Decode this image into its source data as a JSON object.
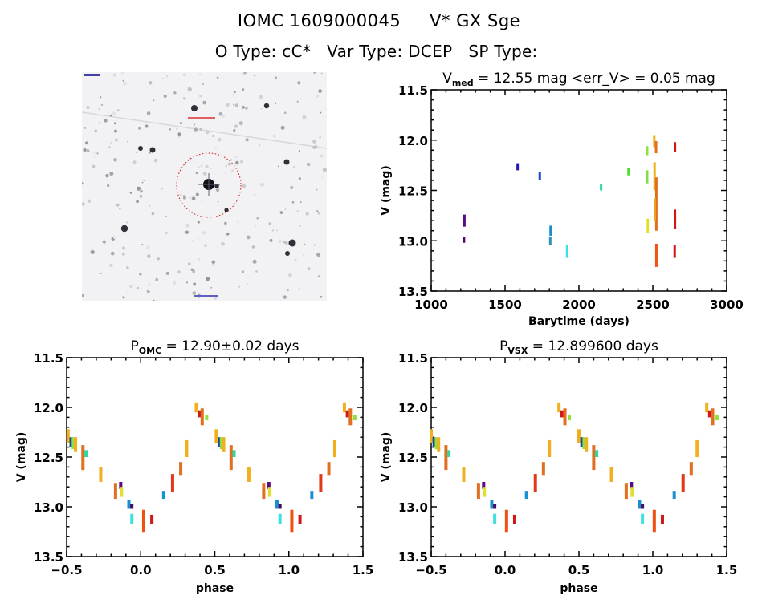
{
  "header": {
    "object_id": "IOMC 1609000045",
    "object_name": "V* GX Sge",
    "o_type_label": "O Type:",
    "o_type": "cC*",
    "var_type_label": "Var Type:",
    "var_type": "DCEP",
    "sp_type_label": "SP Type:",
    "sp_type": ""
  },
  "thumbnail": {
    "description": "Grayscale finding chart with red dashed circle around target star",
    "marker_color": "#d01010"
  },
  "chart_data": [
    {
      "id": "lightcurve",
      "type": "scatter",
      "title_prefix": "V",
      "title_sub": "med",
      "title_suffix": " = 12.55 mag <err_V> = 0.05 mag",
      "xlabel": "Barytime (days)",
      "ylabel": "V (mag)",
      "xlim": [
        1000,
        3000
      ],
      "ylim": [
        13.5,
        11.5
      ],
      "y_inverted": true,
      "xticks": [
        1000,
        1500,
        2000,
        2500,
        3000
      ],
      "xtick_labels": [
        "1000",
        "1500",
        "2000",
        "2500",
        "3000"
      ],
      "yticks": [
        11.5,
        12.0,
        12.5,
        13.0,
        13.5
      ],
      "ytick_labels": [
        "11.5",
        "12.0",
        "12.5",
        "13.0",
        "13.5"
      ],
      "grid": false,
      "series": [
        {
          "name": "epoch-1",
          "color": "#5a0a80",
          "x": 1225,
          "y_range": [
            12.74,
            12.86
          ]
        },
        {
          "name": "epoch-2",
          "color": "#4a0a60",
          "x": 1222,
          "y_range": [
            12.96,
            13.02
          ]
        },
        {
          "name": "epoch-3",
          "color": "#2018b8",
          "x": 1585,
          "y_range": [
            12.23,
            12.3
          ]
        },
        {
          "name": "epoch-4",
          "color": "#1848c8",
          "x": 1735,
          "y_range": [
            12.32,
            12.4
          ]
        },
        {
          "name": "epoch-5",
          "color": "#1890d0",
          "x": 1808,
          "y_range": [
            12.85,
            12.95
          ]
        },
        {
          "name": "epoch-6",
          "color": "#3090b8",
          "x": 1806,
          "y_range": [
            12.96,
            13.04
          ]
        },
        {
          "name": "epoch-7",
          "color": "#40e0e0",
          "x": 1920,
          "y_range": [
            13.04,
            13.17
          ]
        },
        {
          "name": "epoch-8",
          "color": "#30d8a0",
          "x": 2150,
          "y_range": [
            12.44,
            12.5
          ]
        },
        {
          "name": "epoch-9",
          "color": "#50e030",
          "x": 2335,
          "y_range": [
            12.28,
            12.35
          ]
        },
        {
          "name": "epoch-10",
          "color": "#90e040",
          "x": 2462,
          "y_range": [
            12.06,
            12.15
          ]
        },
        {
          "name": "epoch-11",
          "color": "#80e040",
          "x": 2462,
          "y_range": [
            12.3,
            12.43
          ]
        },
        {
          "name": "epoch-12",
          "color": "#e0e030",
          "x": 2466,
          "y_range": [
            12.78,
            12.92
          ]
        },
        {
          "name": "epoch-13",
          "color": "#f0b020",
          "x": 2510,
          "y_range": [
            11.95,
            12.07
          ]
        },
        {
          "name": "epoch-14",
          "color": "#e07020",
          "x": 2522,
          "y_range": [
            12.01,
            12.13
          ]
        },
        {
          "name": "epoch-15",
          "color": "#f0b020",
          "x": 2512,
          "y_range": [
            12.22,
            12.5
          ]
        },
        {
          "name": "epoch-16",
          "color": "#e07020",
          "x": 2524,
          "y_range": [
            12.37,
            12.9
          ]
        },
        {
          "name": "epoch-17",
          "color": "#f0a020",
          "x": 2514,
          "y_range": [
            12.58,
            12.8
          ]
        },
        {
          "name": "epoch-18",
          "color": "#f05010",
          "x": 2524,
          "y_range": [
            13.03,
            13.26
          ]
        },
        {
          "name": "epoch-19",
          "color": "#d01818",
          "x": 2650,
          "y_range": [
            12.02,
            12.12
          ]
        },
        {
          "name": "epoch-20",
          "color": "#d01818",
          "x": 2650,
          "y_range": [
            12.69,
            12.88
          ]
        },
        {
          "name": "epoch-21",
          "color": "#d01818",
          "x": 2648,
          "y_range": [
            13.04,
            13.17
          ]
        }
      ]
    },
    {
      "id": "phase-omc",
      "type": "scatter",
      "title_prefix": "P",
      "title_sub": "OMC",
      "title_suffix": " = 12.90±0.02 days",
      "xlabel": "phase",
      "ylabel": "V (mag)",
      "xlim": [
        -0.5,
        1.5
      ],
      "ylim": [
        13.5,
        11.5
      ],
      "y_inverted": true,
      "xticks": [
        -0.5,
        0.0,
        0.5,
        1.0,
        1.5
      ],
      "xtick_labels": [
        "−0.5",
        "0.0",
        "0.5",
        "1.0",
        "1.5"
      ],
      "yticks": [
        11.5,
        12.0,
        12.5,
        13.0,
        13.5
      ],
      "ytick_labels": [
        "11.5",
        "12.0",
        "12.5",
        "13.0",
        "13.5"
      ],
      "grid": false,
      "phase_shift": 0.0,
      "clusters": [
        {
          "phase": -0.49,
          "y_range": [
            12.22,
            12.36
          ],
          "color": "#f0b020"
        },
        {
          "phase": -0.47,
          "y_range": [
            12.3,
            12.4
          ],
          "color": "#1848a8"
        },
        {
          "phase": -0.455,
          "y_range": [
            12.3,
            12.42
          ],
          "color": "#90e040"
        },
        {
          "phase": -0.44,
          "y_range": [
            12.3,
            12.45
          ],
          "color": "#f0b020"
        },
        {
          "phase": -0.39,
          "y_range": [
            12.38,
            12.63
          ],
          "color": "#e07020"
        },
        {
          "phase": -0.37,
          "y_range": [
            12.43,
            12.5
          ],
          "color": "#30d8a0"
        },
        {
          "phase": -0.27,
          "y_range": [
            12.6,
            12.75
          ],
          "color": "#f0b020"
        },
        {
          "phase": -0.17,
          "y_range": [
            12.76,
            12.92
          ],
          "color": "#e07020"
        },
        {
          "phase": -0.135,
          "y_range": [
            12.75,
            12.82
          ],
          "color": "#5a0a80"
        },
        {
          "phase": -0.13,
          "y_range": [
            12.8,
            12.9
          ],
          "color": "#e0e030"
        },
        {
          "phase": -0.08,
          "y_range": [
            12.93,
            13.02
          ],
          "color": "#1890d0"
        },
        {
          "phase": -0.06,
          "y_range": [
            12.97,
            13.02
          ],
          "color": "#4a0a60"
        },
        {
          "phase": -0.06,
          "y_range": [
            13.07,
            13.17
          ],
          "color": "#40e0e0"
        },
        {
          "phase": 0.02,
          "y_range": [
            13.03,
            13.26
          ],
          "color": "#f05010"
        },
        {
          "phase": 0.075,
          "y_range": [
            13.08,
            13.17
          ],
          "color": "#d01818"
        },
        {
          "phase": 0.155,
          "y_range": [
            12.84,
            12.92
          ],
          "color": "#1890d0"
        },
        {
          "phase": 0.215,
          "y_range": [
            12.67,
            12.85
          ],
          "color": "#e03818"
        },
        {
          "phase": 0.27,
          "y_range": [
            12.55,
            12.68
          ],
          "color": "#e07020"
        },
        {
          "phase": 0.31,
          "y_range": [
            12.33,
            12.5
          ],
          "color": "#f0b020"
        },
        {
          "phase": 0.375,
          "y_range": [
            11.95,
            12.05
          ],
          "color": "#f0b020"
        },
        {
          "phase": 0.395,
          "y_range": [
            12.03,
            12.1
          ],
          "color": "#d01818"
        },
        {
          "phase": 0.415,
          "y_range": [
            12.01,
            12.18
          ],
          "color": "#e07020"
        },
        {
          "phase": 0.445,
          "y_range": [
            12.08,
            12.13
          ],
          "color": "#90e040"
        }
      ]
    },
    {
      "id": "phase-vsx",
      "type": "scatter",
      "title_prefix": "P",
      "title_sub": "VSX",
      "title_suffix": " = 12.899600 days",
      "xlabel": "phase",
      "ylabel": "V (mag)",
      "xlim": [
        -0.5,
        1.5
      ],
      "ylim": [
        13.5,
        11.5
      ],
      "y_inverted": true,
      "xticks": [
        -0.5,
        0.0,
        0.5,
        1.0,
        1.5
      ],
      "xtick_labels": [
        "−0.5",
        "0.0",
        "0.5",
        "1.0",
        "1.5"
      ],
      "yticks": [
        11.5,
        12.0,
        12.5,
        13.0,
        13.5
      ],
      "ytick_labels": [
        "11.5",
        "12.0",
        "12.5",
        "13.0",
        "13.5"
      ],
      "grid": false,
      "phase_shift": -0.01,
      "clusters_ref": "phase-omc"
    }
  ]
}
